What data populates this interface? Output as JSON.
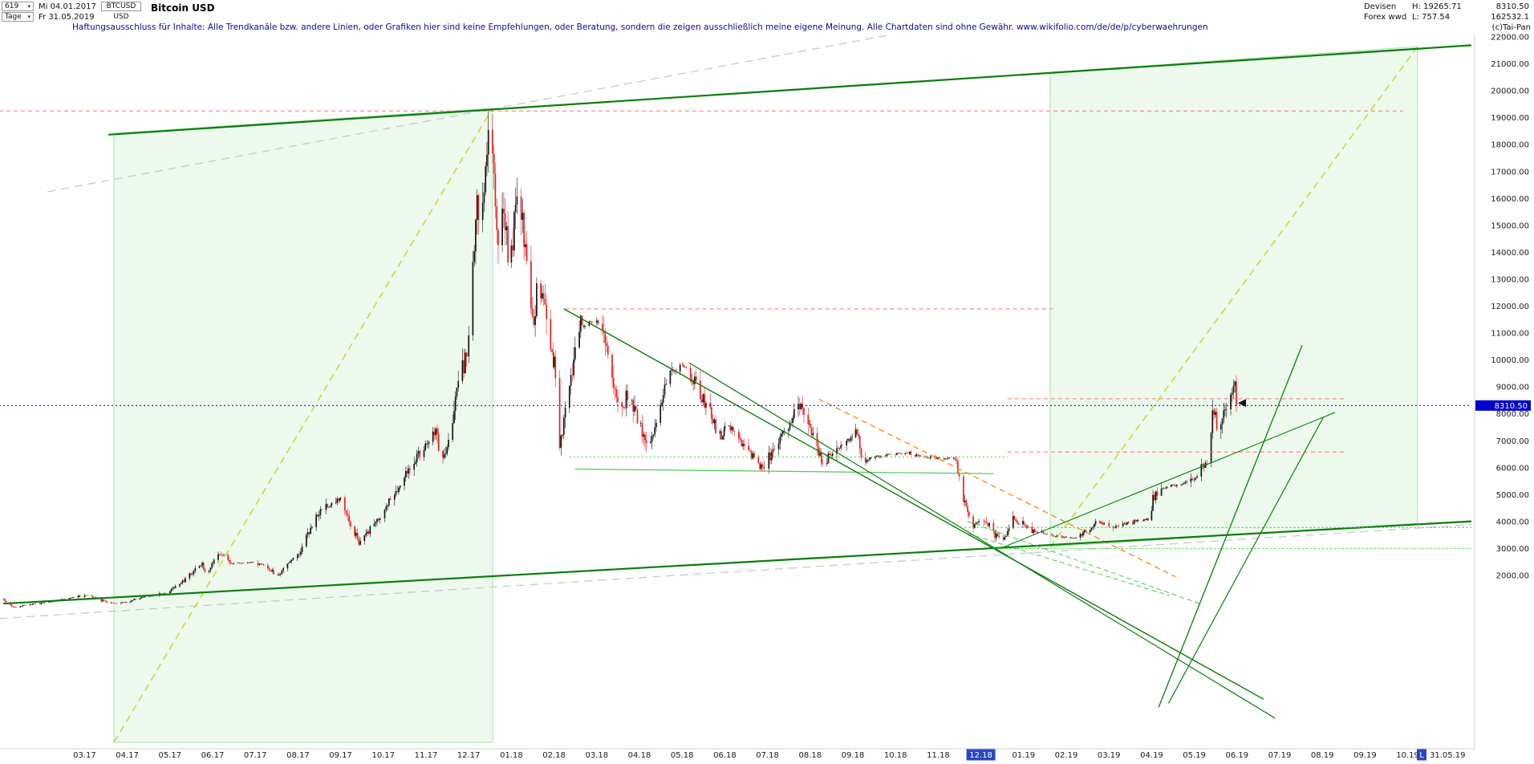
{
  "header": {
    "bars_count": "619",
    "date_from": "Mi 04.01.2017",
    "date_to": "Fr 31.05.2019",
    "period": "Tage",
    "symbol": "BTCUSD",
    "symbol_currency": "USD",
    "instrument_title": "Bitcoin USD",
    "market": "Devisen",
    "feed": "Forex wwd",
    "high": "H: 19265.71",
    "low": "L: 757.54",
    "last": "8310.50",
    "volume": "162532.1",
    "copyright": "(c)Tai-Pan",
    "dropdown_icon": "▾"
  },
  "disclaimer": "Haftungsausschluss für Inhalte: Alle Trendkanäle bzw. andere Linien, oder Grafiken hier sind keine Empfehlungen, oder Beratung, sondern die zeigen ausschließlich meine eigene Meinung. Alle Chartdaten sind ohne Gewähr.  www.wikifolio.com/de/de/p/cyberwaehrungen",
  "price_axis": {
    "tick_max": 22000,
    "tick_min": 2000,
    "tick_step": 1000,
    "decimals": 2,
    "last_price_label": "8310.50"
  },
  "x_axis": {
    "labels": [
      "03.17",
      "04.17",
      "05.17",
      "06.17",
      "07.17",
      "08.17",
      "09.17",
      "10.17",
      "11.17",
      "12.17",
      "01.18",
      "02.18",
      "03.18",
      "04.18",
      "05.18",
      "06.18",
      "07.18",
      "08.18",
      "09.18",
      "10.18",
      "11.18",
      "12.18",
      "01.19",
      "02.19",
      "03.19",
      "04.19",
      "05.19",
      "06.19",
      "07.19",
      "08.19",
      "09.19",
      "10.19"
    ],
    "highlighted_label": "12.18",
    "last_marker": {
      "prefix": "L",
      "date": "31.05.19"
    }
  },
  "chart_data": {
    "type": "candlestick",
    "symbol": "BTCUSD",
    "title": "Bitcoin USD",
    "timeframe": "daily",
    "date_range": [
      "2017-01-04",
      "2019-05-31"
    ],
    "y_axis_visible_range": [
      2000,
      22000
    ],
    "grid": "off",
    "last_price": 8310.5,
    "session_high": 19265.71,
    "session_low": 757.54,
    "close_path_anchors": [
      [
        "2017-01-04",
        1135
      ],
      [
        "2017-01-11",
        790
      ],
      [
        "2017-01-20",
        895
      ],
      [
        "2017-02-05",
        1010
      ],
      [
        "2017-02-24",
        1185
      ],
      [
        "2017-03-03",
        1270
      ],
      [
        "2017-03-18",
        975
      ],
      [
        "2017-03-25",
        940
      ],
      [
        "2017-04-12",
        1200
      ],
      [
        "2017-04-30",
        1340
      ],
      [
        "2017-05-10",
        1760
      ],
      [
        "2017-05-24",
        2440
      ],
      [
        "2017-05-27",
        2050
      ],
      [
        "2017-06-06",
        2870
      ],
      [
        "2017-06-14",
        2430
      ],
      [
        "2017-06-30",
        2480
      ],
      [
        "2017-07-10",
        2330
      ],
      [
        "2017-07-16",
        1920
      ],
      [
        "2017-08-01",
        2760
      ],
      [
        "2017-08-17",
        4420
      ],
      [
        "2017-09-01",
        4880
      ],
      [
        "2017-09-14",
        3200
      ],
      [
        "2017-10-01",
        4390
      ],
      [
        "2017-10-20",
        6000
      ],
      [
        "2017-11-08",
        7420
      ],
      [
        "2017-11-12",
        5900
      ],
      [
        "2017-11-28",
        9900
      ],
      [
        "2017-12-01",
        10900
      ],
      [
        "2017-12-07",
        16450
      ],
      [
        "2017-12-09",
        14900
      ],
      [
        "2017-12-16",
        19100
      ],
      [
        "2017-12-22",
        13900
      ],
      [
        "2017-12-26",
        15900
      ],
      [
        "2017-12-30",
        13200
      ],
      [
        "2018-01-06",
        16900
      ],
      [
        "2018-01-16",
        11300
      ],
      [
        "2018-01-20",
        12900
      ],
      [
        "2018-01-31",
        10100
      ],
      [
        "2018-02-05",
        6900
      ],
      [
        "2018-02-20",
        11300
      ],
      [
        "2018-03-04",
        11400
      ],
      [
        "2018-03-18",
        7950
      ],
      [
        "2018-03-24",
        8900
      ],
      [
        "2018-04-06",
        6700
      ],
      [
        "2018-04-24",
        9600
      ],
      [
        "2018-05-05",
        9800
      ],
      [
        "2018-05-28",
        7150
      ],
      [
        "2018-06-02",
        7650
      ],
      [
        "2018-06-28",
        5950
      ],
      [
        "2018-07-24",
        8350
      ],
      [
        "2018-08-10",
        6250
      ],
      [
        "2018-08-28",
        7050
      ],
      [
        "2018-09-04",
        7300
      ],
      [
        "2018-09-08",
        6250
      ],
      [
        "2018-09-25",
        6500
      ],
      [
        "2018-10-10",
        6550
      ],
      [
        "2018-10-29",
        6350
      ],
      [
        "2018-11-13",
        6340
      ],
      [
        "2018-11-19",
        4900
      ],
      [
        "2018-11-25",
        3800
      ],
      [
        "2018-12-03",
        4100
      ],
      [
        "2018-12-15",
        3230
      ],
      [
        "2018-12-24",
        4050
      ],
      [
        "2019-01-02",
        3850
      ],
      [
        "2019-01-13",
        3560
      ],
      [
        "2019-01-30",
        3420
      ],
      [
        "2019-02-08",
        3400
      ],
      [
        "2019-02-23",
        3980
      ],
      [
        "2019-03-04",
        3780
      ],
      [
        "2019-03-21",
        4030
      ],
      [
        "2019-03-31",
        4100
      ],
      [
        "2019-04-02",
        4850
      ],
      [
        "2019-04-08",
        5250
      ],
      [
        "2019-04-25",
        5450
      ],
      [
        "2019-05-03",
        5750
      ],
      [
        "2019-05-11",
        6350
      ],
      [
        "2019-05-14",
        7950
      ],
      [
        "2019-05-16",
        8300
      ],
      [
        "2019-05-17",
        7350
      ],
      [
        "2019-05-21",
        7950
      ],
      [
        "2019-05-27",
        8750
      ],
      [
        "2019-05-30",
        9050
      ],
      [
        "2019-05-31",
        8310.5
      ]
    ],
    "overlays": [
      {
        "name": "bull-zone-2017",
        "kind": "region",
        "layer": "back",
        "points": [
          [
            "2017-03-22",
            18420
          ],
          [
            "2017-12-18",
            19350
          ],
          [
            "2017-12-18",
            -4200
          ],
          [
            "2017-03-22",
            -4200
          ]
        ],
        "color": "#a6e2a6",
        "fill": "#e2f6e2",
        "opacity": 0.65,
        "width": 1
      },
      {
        "name": "bull-zone-2019",
        "kind": "region",
        "layer": "back",
        "points": [
          [
            "2019-01-20",
            20680
          ],
          [
            "2019-10-08",
            21640
          ],
          [
            "2019-10-08",
            3930
          ],
          [
            "2019-01-20",
            3060
          ]
        ],
        "color": "#a6e2a6",
        "fill": "#e2f6e2",
        "opacity": 0.65,
        "width": 1
      },
      {
        "name": "gray-trend-upper",
        "kind": "line",
        "layer": "back",
        "from": [
          "2017-02-05",
          16250
        ],
        "to": [
          "2018-09-25",
          22050
        ],
        "color": "#c9c9c9",
        "width": 1.3,
        "dash": "10,7"
      },
      {
        "name": "gray-trend-lower",
        "kind": "line",
        "layer": "back",
        "from": [
          "2017-01-01",
          400
        ],
        "to": [
          "2019-11-16",
          3880
        ],
        "color": "#c9c9c9",
        "width": 1.3,
        "dash": "10,7"
      },
      {
        "name": "rally-diagonal-2017",
        "kind": "line",
        "layer": "back",
        "from": [
          "2017-03-22",
          -4200
        ],
        "to": [
          "2017-12-18",
          19350
        ],
        "color": "#c9d92e",
        "width": 1.5,
        "dash": "9,6"
      },
      {
        "name": "rally-diagonal-2019",
        "kind": "line",
        "layer": "back",
        "from": [
          "2019-01-20",
          3060
        ],
        "to": [
          "2019-10-08",
          21640
        ],
        "color": "#c9d92e",
        "width": 1.5,
        "dash": "9,6"
      },
      {
        "name": "resistance-ath-19250",
        "kind": "hline",
        "price": 19250,
        "x1": "2017-01-01",
        "x2": "2019-09-28",
        "color": "#ff7373",
        "width": 1,
        "dash": "5,4"
      },
      {
        "name": "resistance-12000",
        "kind": "hline",
        "price": 11900,
        "x1": "2018-02-09",
        "x2": "2019-01-22",
        "color": "#ff7373",
        "width": 1,
        "dash": "5,4"
      },
      {
        "name": "resistance-8560",
        "kind": "hline",
        "price": 8560,
        "x1": "2018-12-20",
        "x2": "2019-08-18",
        "color": "#ff7373",
        "width": 1,
        "dash": "5,4"
      },
      {
        "name": "support-6580",
        "kind": "hline",
        "price": 6580,
        "x1": "2018-12-20",
        "x2": "2019-08-18",
        "color": "#ff7373",
        "width": 1,
        "dash": "5,4"
      },
      {
        "name": "dotted-level-6400",
        "kind": "hline",
        "price": 6400,
        "x1": "2018-02-12",
        "x2": "2018-12-20",
        "color": "#2fd32f",
        "width": 1,
        "dash": "2,3"
      },
      {
        "name": "support-2018-floor",
        "kind": "line",
        "from": [
          "2018-02-16",
          5950
        ],
        "to": [
          "2018-12-10",
          5780
        ],
        "color": "#4ecb4e",
        "width": 1.2
      },
      {
        "name": "orange-downtrend",
        "kind": "line",
        "from": [
          "2018-08-07",
          8550
        ],
        "to": [
          "2019-04-18",
          1950
        ],
        "color": "#ff8c1a",
        "width": 1.4,
        "dash": "7,5"
      },
      {
        "name": "major-channel-top",
        "kind": "line",
        "from": [
          "2017-03-18",
          18370
        ],
        "to": [
          "2019-11-16",
          21690
        ],
        "color": "#0a7d0a",
        "width": 2.2
      },
      {
        "name": "major-channel-bottom",
        "kind": "line",
        "from": [
          "2017-01-04",
          950
        ],
        "to": [
          "2019-11-16",
          4010
        ],
        "color": "#0a7d0a",
        "width": 2.2
      },
      {
        "name": "downtrend-2018-a",
        "kind": "line",
        "from": [
          "2018-02-08",
          11900
        ],
        "to": [
          "2019-06-20",
          -2600
        ],
        "color": "#0a7d0a",
        "width": 1.4
      },
      {
        "name": "downtrend-2018-b",
        "kind": "line",
        "from": [
          "2018-05-06",
          9900
        ],
        "to": [
          "2019-06-28",
          -3300
        ],
        "color": "#0a7d0a",
        "width": 1.2
      },
      {
        "name": "uptrend-2019-steep-a",
        "kind": "line",
        "from": [
          "2019-04-06",
          -2900
        ],
        "to": [
          "2019-07-17",
          10550
        ],
        "color": "#0a7d0a",
        "width": 1.3
      },
      {
        "name": "uptrend-2019-steep-b",
        "kind": "line",
        "from": [
          "2019-04-13",
          -2750
        ],
        "to": [
          "2019-08-02",
          7900
        ],
        "color": "#0a7d0a",
        "width": 1.2
      },
      {
        "name": "uptrend-2019-from-low",
        "kind": "line",
        "from": [
          "2018-12-17",
          3050
        ],
        "to": [
          "2019-08-10",
          8050
        ],
        "color": "#0a7d0a",
        "width": 1.1
      },
      {
        "name": "falling-wedge-upper",
        "kind": "line",
        "from": [
          "2018-11-22",
          4000
        ],
        "to": [
          "2019-05-05",
          950
        ],
        "color": "#4ecb4e",
        "width": 1,
        "dash": "6,4"
      },
      {
        "name": "falling-wedge-lower",
        "kind": "line",
        "from": [
          "2018-11-22",
          3550
        ],
        "to": [
          "2019-04-14",
          1250
        ],
        "color": "#4ecb4e",
        "width": 1,
        "dash": "6,4"
      },
      {
        "name": "dotted-support-3780",
        "kind": "hline",
        "price": 3780,
        "x1": "2018-11-20",
        "x2": "2019-11-16",
        "color": "#2fd32f",
        "width": 1.1,
        "dash": "2,3"
      },
      {
        "name": "dotted-support-3000",
        "kind": "hline",
        "price": 3000,
        "x1": "2018-12-10",
        "x2": "2019-11-16",
        "color": "#2fd32f",
        "width": 1.1,
        "dash": "2,3"
      },
      {
        "name": "last-price-line",
        "kind": "hline",
        "price": 8310.5,
        "x1": "2017-01-01",
        "x2": "2019-11-16",
        "color": "#1616ff",
        "width": 1.2,
        "dash": "2,3"
      },
      {
        "name": "last-price-pointer",
        "kind": "marker",
        "at": [
          "2019-06-04",
          8400
        ],
        "color": "#111111"
      }
    ],
    "colors": {
      "up_candle": "#151515",
      "down_candle": "#e82020",
      "channel_green": "#0a7d0a",
      "region_fill": "#e2f6e2",
      "light_green": "#4ecb4e",
      "bright_green_dotted": "#2fd32f",
      "yellow_dashed": "#c9d92e",
      "gray_dashed": "#c9c9c9",
      "red_dashed": "#ff7373",
      "orange": "#ff8c1a",
      "last_price_line": "#1616ff",
      "axis_label_bg": "#0000cc",
      "highlight_bg": "#2a46c8"
    }
  }
}
